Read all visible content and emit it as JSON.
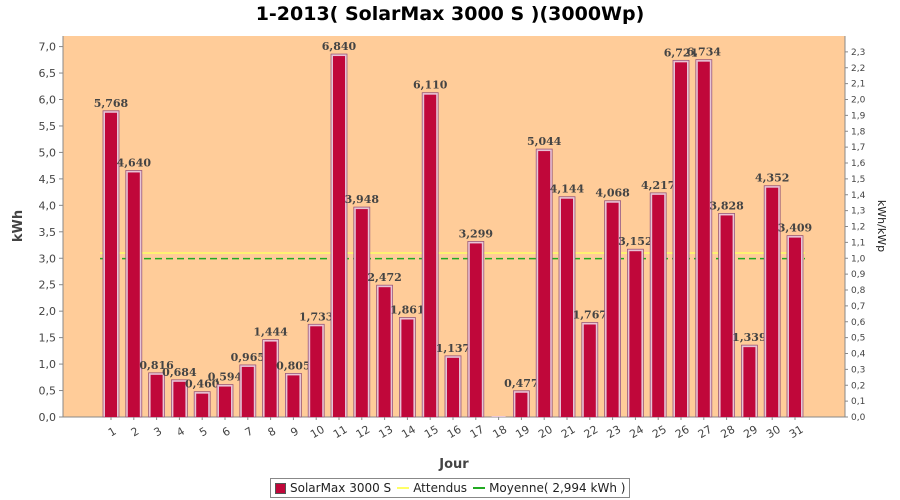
{
  "chart_data": {
    "type": "bar",
    "title": "1-2013( SolarMax 3000 S )(3000Wp)",
    "xlabel": "Jour",
    "ylabel": "kWh",
    "y2label": "kWh/kWp",
    "categories": [
      "1",
      "2",
      "3",
      "4",
      "5",
      "6",
      "7",
      "8",
      "9",
      "10",
      "11",
      "12",
      "13",
      "14",
      "15",
      "16",
      "17",
      "18",
      "19",
      "20",
      "21",
      "22",
      "23",
      "24",
      "25",
      "26",
      "27",
      "28",
      "29",
      "30",
      "31"
    ],
    "series": [
      {
        "name": "SolarMax 3000 S",
        "color": "#c0073a",
        "values": [
          5.768,
          4.64,
          0.816,
          0.684,
          0.46,
          0.594,
          0.965,
          1.444,
          0.805,
          1.733,
          6.84,
          3.948,
          2.472,
          1.861,
          6.11,
          1.137,
          3.299,
          0.0,
          0.477,
          5.044,
          4.144,
          1.767,
          4.068,
          3.152,
          4.217,
          6.721,
          6.734,
          3.828,
          1.339,
          4.352,
          3.409
        ],
        "labels": [
          "5,768",
          "4,640",
          "0,816",
          "0,684",
          "0,460",
          "0,594",
          "0,965",
          "1,444",
          "0,805",
          "1,733",
          "6,840",
          "3,948",
          "2,472",
          "1,861",
          "6,110",
          "1,137",
          "3,299",
          "",
          "0,477",
          "5,044",
          "4,144",
          "1,767",
          "4,068",
          "3,152",
          "4,217",
          "6,721",
          "6,734",
          "3,828",
          "1,339",
          "4,352",
          "3,409"
        ]
      }
    ],
    "attendus": {
      "name": "Attendus",
      "value": 3.1,
      "color": "#ffff66"
    },
    "moyenne": {
      "name": "Moyenne( 2,994 kWh )",
      "value": 2.994,
      "color": "#22aa22"
    },
    "ylim": [
      0,
      7.2
    ],
    "yticks": [
      "0,0",
      "0,5",
      "1,0",
      "1,5",
      "2,0",
      "2,5",
      "3,0",
      "3,5",
      "4,0",
      "4,5",
      "5,0",
      "5,5",
      "6,0",
      "6,5",
      "7,0"
    ],
    "y2lim": [
      0,
      2.4
    ],
    "y2ticks": [
      "0,0",
      "0,1",
      "0,2",
      "0,3",
      "0,4",
      "0,5",
      "0,6",
      "0,7",
      "0,8",
      "0,9",
      "1,0",
      "1,1",
      "1,2",
      "1,3",
      "1,4",
      "1,5",
      "1,6",
      "1,7",
      "1,8",
      "1,9",
      "2,0",
      "2,1",
      "2,2",
      "2,3"
    ],
    "plot_background": "#ffcc99",
    "legend_position": "bottom"
  }
}
